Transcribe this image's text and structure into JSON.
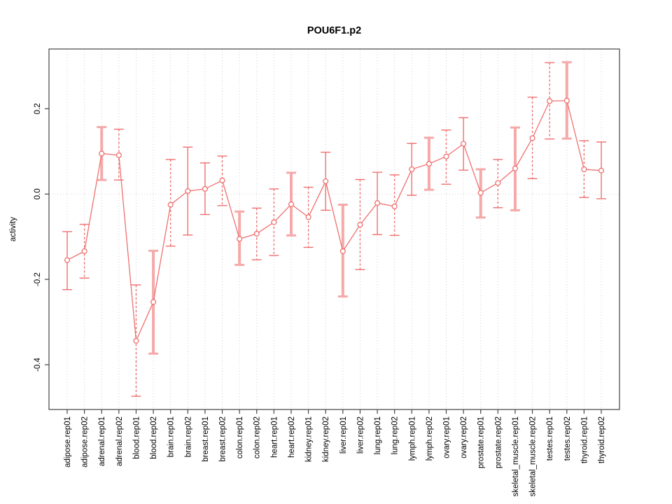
{
  "chart_data": {
    "type": "line",
    "title": "POU6F1.p2",
    "xlabel": "",
    "ylabel": "activity",
    "ylim": [
      -0.505,
      0.34
    ],
    "yticks": [
      0.2,
      0.0,
      -0.2,
      -0.4
    ],
    "ytick_labels": [
      "0.2",
      "0.0",
      "-0.2",
      "-0.4"
    ],
    "grid": "vertical dotted gridline at every category; dotted horizontal line at y=0",
    "legend": "none",
    "marker": "open-circle",
    "colors": {
      "line": "#ef6f6f",
      "thick_bar": "#f5a9a9",
      "grid": "#d0d0d0",
      "axis": "#444444"
    },
    "categories": [
      "adipose.rep01",
      "adipose.rep02",
      "adrenal.rep01",
      "adrenal.rep02",
      "blood.rep01",
      "blood.rep02",
      "brain.rep01",
      "brain.rep02",
      "breast.rep01",
      "breast.rep02",
      "colon.rep01",
      "colon.rep02",
      "heart.rep01",
      "heart.rep02",
      "kidney.rep01",
      "kidney.rep02",
      "liver.rep01",
      "liver.rep02",
      "lung.rep01",
      "lung.rep02",
      "lymph.rep01",
      "lymph.rep02",
      "ovary.rep01",
      "ovary.rep02",
      "prostate.rep01",
      "prostate.rep02",
      "skeletal_muscle.rep01",
      "skeletal_muscle.rep02",
      "testes.rep01",
      "testes.rep02",
      "thyroid.rep01",
      "thyroid.rep02"
    ],
    "points": [
      {
        "label": "adipose.rep01",
        "value": -0.155,
        "lo": -0.224,
        "hi": -0.088,
        "bar": "solid"
      },
      {
        "label": "adipose.rep02",
        "value": -0.134,
        "lo": -0.197,
        "hi": -0.071,
        "bar": "dashed"
      },
      {
        "label": "adrenal.rep01",
        "value": 0.095,
        "lo": 0.033,
        "hi": 0.157,
        "bar": "thick"
      },
      {
        "label": "adrenal.rep02",
        "value": 0.091,
        "lo": 0.033,
        "hi": 0.152,
        "bar": "dashed"
      },
      {
        "label": "blood.rep01",
        "value": -0.344,
        "lo": -0.474,
        "hi": -0.213,
        "bar": "dashed"
      },
      {
        "label": "blood.rep02",
        "value": -0.253,
        "lo": -0.374,
        "hi": -0.133,
        "bar": "thick"
      },
      {
        "label": "brain.rep01",
        "value": -0.025,
        "lo": -0.122,
        "hi": 0.081,
        "bar": "dashed"
      },
      {
        "label": "brain.rep02",
        "value": 0.007,
        "lo": -0.096,
        "hi": 0.11,
        "bar": "solid"
      },
      {
        "label": "breast.rep01",
        "value": 0.012,
        "lo": -0.048,
        "hi": 0.073,
        "bar": "solid"
      },
      {
        "label": "breast.rep02",
        "value": 0.032,
        "lo": -0.027,
        "hi": 0.089,
        "bar": "dashed"
      },
      {
        "label": "colon.rep01",
        "value": -0.105,
        "lo": -0.166,
        "hi": -0.041,
        "bar": "thick"
      },
      {
        "label": "colon.rep02",
        "value": -0.093,
        "lo": -0.154,
        "hi": -0.033,
        "bar": "dashed"
      },
      {
        "label": "heart.rep01",
        "value": -0.066,
        "lo": -0.144,
        "hi": 0.012,
        "bar": "dashed"
      },
      {
        "label": "heart.rep02",
        "value": -0.024,
        "lo": -0.097,
        "hi": 0.05,
        "bar": "thick"
      },
      {
        "label": "kidney.rep01",
        "value": -0.054,
        "lo": -0.125,
        "hi": 0.016,
        "bar": "dashed"
      },
      {
        "label": "kidney.rep02",
        "value": 0.03,
        "lo": -0.038,
        "hi": 0.098,
        "bar": "solid"
      },
      {
        "label": "liver.rep01",
        "value": -0.134,
        "lo": -0.24,
        "hi": -0.025,
        "bar": "thick"
      },
      {
        "label": "liver.rep02",
        "value": -0.072,
        "lo": -0.177,
        "hi": 0.034,
        "bar": "dashed"
      },
      {
        "label": "lung.rep01",
        "value": -0.021,
        "lo": -0.095,
        "hi": 0.051,
        "bar": "solid"
      },
      {
        "label": "lung.rep02",
        "value": -0.029,
        "lo": -0.097,
        "hi": 0.045,
        "bar": "dashed"
      },
      {
        "label": "lymph.rep01",
        "value": 0.058,
        "lo": -0.003,
        "hi": 0.119,
        "bar": "solid"
      },
      {
        "label": "lymph.rep02",
        "value": 0.071,
        "lo": 0.01,
        "hi": 0.132,
        "bar": "thick"
      },
      {
        "label": "ovary.rep01",
        "value": 0.088,
        "lo": 0.023,
        "hi": 0.15,
        "bar": "dashed"
      },
      {
        "label": "ovary.rep02",
        "value": 0.118,
        "lo": 0.056,
        "hi": 0.179,
        "bar": "solid"
      },
      {
        "label": "prostate.rep01",
        "value": 0.003,
        "lo": -0.055,
        "hi": 0.058,
        "bar": "thick"
      },
      {
        "label": "prostate.rep02",
        "value": 0.026,
        "lo": -0.032,
        "hi": 0.081,
        "bar": "dashed"
      },
      {
        "label": "skeletal_muscle.rep01",
        "value": 0.06,
        "lo": -0.038,
        "hi": 0.156,
        "bar": "thick"
      },
      {
        "label": "skeletal_muscle.rep02",
        "value": 0.131,
        "lo": 0.036,
        "hi": 0.227,
        "bar": "dashed"
      },
      {
        "label": "testes.rep01",
        "value": 0.218,
        "lo": 0.129,
        "hi": 0.308,
        "bar": "dashed"
      },
      {
        "label": "testes.rep02",
        "value": 0.219,
        "lo": 0.13,
        "hi": 0.309,
        "bar": "thick"
      },
      {
        "label": "thyroid.rep01",
        "value": 0.058,
        "lo": -0.008,
        "hi": 0.125,
        "bar": "dashed"
      },
      {
        "label": "thyroid.rep02",
        "value": 0.055,
        "lo": -0.011,
        "hi": 0.122,
        "bar": "solid"
      }
    ]
  }
}
